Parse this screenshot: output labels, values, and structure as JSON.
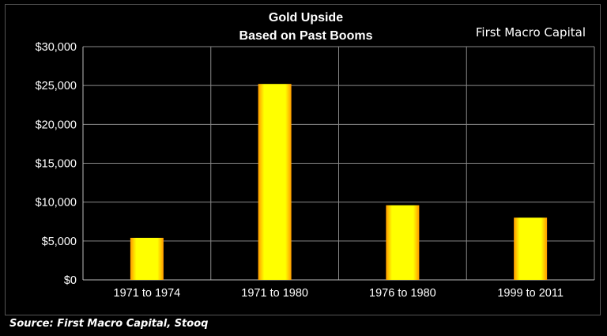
{
  "chart_data": {
    "type": "bar",
    "title": "Gold Upside",
    "subtitle": "Based on Past Booms",
    "watermark": "First Macro Capital",
    "source": "Source: First Macro Capital, Stooq",
    "categories": [
      "1971 to 1974",
      "1971 to 1980",
      "1976 to 1980",
      "1999 to 2011"
    ],
    "values": [
      5400,
      25200,
      9600,
      8000
    ],
    "ylim": [
      0,
      30000
    ],
    "yticks": [
      0,
      5000,
      10000,
      15000,
      20000,
      25000,
      30000
    ],
    "ytick_labels": [
      "$0",
      "$5,000",
      "$10,000",
      "$15,000",
      "$20,000",
      "$25,000",
      "$30,000"
    ],
    "xlabel": "",
    "ylabel": "",
    "grid": true,
    "colors": {
      "background": "#000000",
      "bar_center": "#ffff00",
      "bar_edge": "#ff9900",
      "grid": "#8a8a8a",
      "axis": "#bbbbbb",
      "text": "#ffffff"
    }
  }
}
